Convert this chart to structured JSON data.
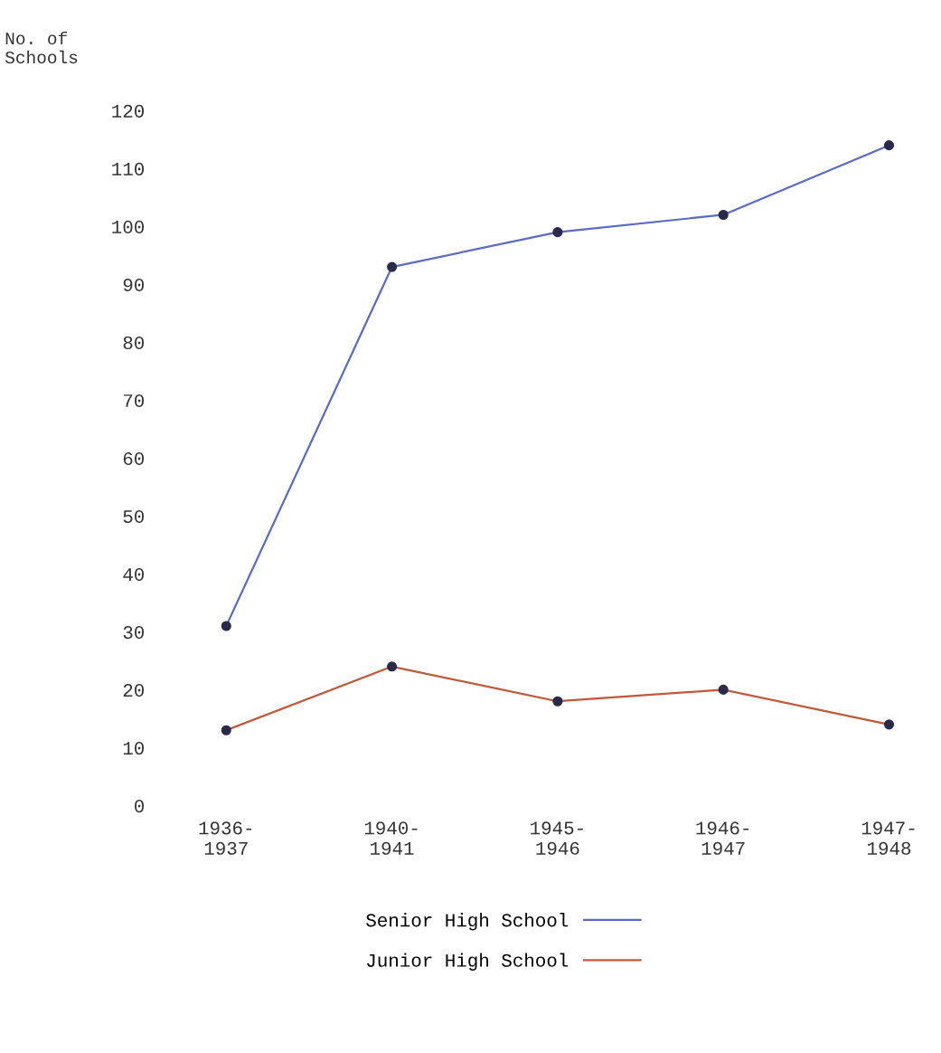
{
  "chart_data": {
    "type": "line",
    "ylabel": "No. of\nSchools",
    "categories": [
      "1936-\n1937",
      "1940-\n1941",
      "1945-\n1946",
      "1946-\n1947",
      "1947-\n1948"
    ],
    "series": [
      {
        "name": "Senior High School",
        "color": "#5a6bc4",
        "values": [
          31,
          93,
          99,
          102,
          114
        ]
      },
      {
        "name": "Junior High School",
        "color": "#c0583a",
        "values": [
          13,
          24,
          18,
          20,
          14
        ]
      }
    ],
    "ylim": [
      0,
      120
    ],
    "yticks": [
      0,
      10,
      20,
      30,
      40,
      50,
      60,
      70,
      80,
      90,
      100,
      110,
      120
    ],
    "marker": "circle",
    "line_style": "solid",
    "grid": false,
    "legend": "bottom"
  }
}
